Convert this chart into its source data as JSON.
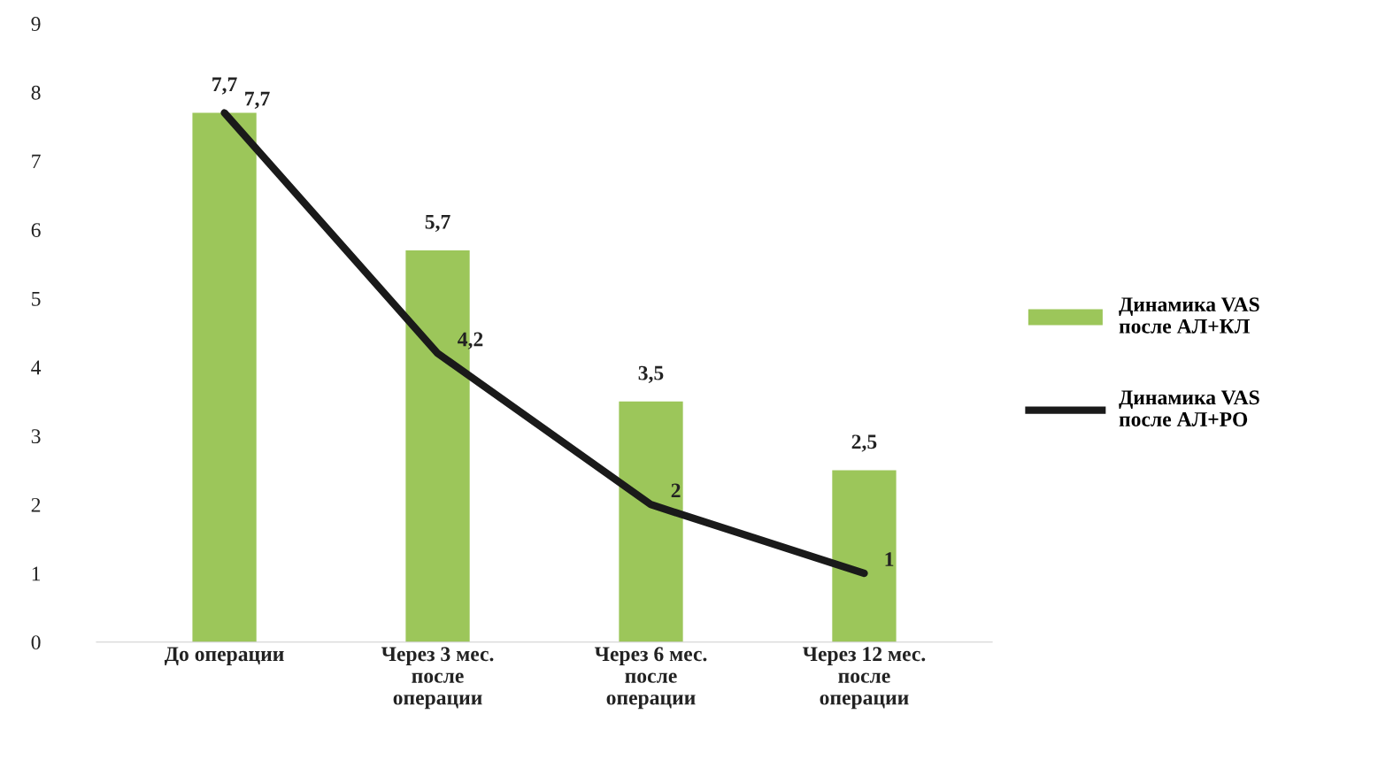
{
  "chart_data": {
    "type": "bar",
    "categories": [
      "До операции",
      "Через 3 мес.\nпосле\nоперации",
      "Через 6 мес.\nпосле\nоперации",
      "Через 12 мес.\nпосле\nоперации"
    ],
    "series": [
      {
        "name": "Динамика VAS\nпосле АЛ+КЛ",
        "color": "#9cc65a",
        "values": [
          7.7,
          5.7,
          3.5,
          2.5
        ],
        "value_labels": [
          "7,7",
          "5,7",
          "3,5",
          "2,5"
        ]
      },
      {
        "name": "Динамика VAS\nпосле АЛ+РО",
        "color": "#1a1a1a",
        "type": "line",
        "values": [
          7.7,
          4.2,
          2,
          1
        ],
        "value_labels": [
          "7,7",
          "4,2",
          "2",
          "1"
        ]
      }
    ],
    "ylim": [
      0,
      9
    ],
    "yticks": [
      0,
      1,
      2,
      3,
      4,
      5,
      6,
      7,
      8,
      9
    ],
    "legend": "right",
    "grid": false,
    "marker": "none",
    "line_style": "solid"
  }
}
